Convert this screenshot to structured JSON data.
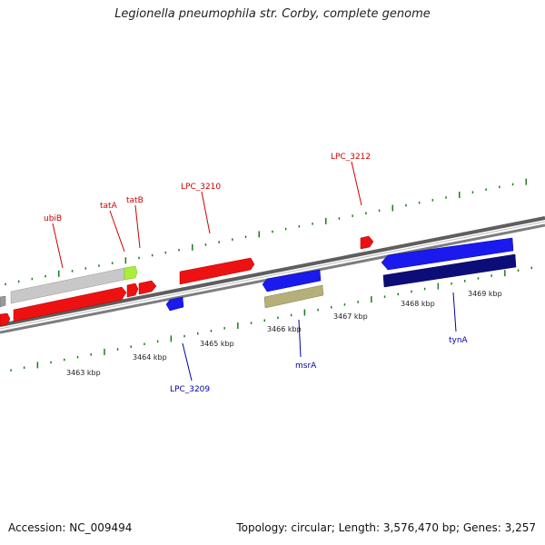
{
  "title": "Legionella pneumophila str. Corby, complete genome",
  "footer": {
    "accession": "Accession: NC_009494",
    "summary": "Topology: circular; Length: 3,576,470 bp; Genes: 3,257"
  },
  "colors": {
    "backbone": "#8c8c8c",
    "tick_green": "#1f7a1f",
    "forward_strand_gene": "#ee1111",
    "reverse_strand_gene": "#1a1aee",
    "label_forward": "#cc0000",
    "label_reverse": "#0000aa"
  },
  "scale_ticks": [
    {
      "label": "3463 kbp"
    },
    {
      "label": "3464 kbp"
    },
    {
      "label": "3465 kbp"
    },
    {
      "label": "3466 kbp"
    },
    {
      "label": "3467 kbp"
    },
    {
      "label": "3468 kbp"
    },
    {
      "label": "3469 kbp"
    }
  ],
  "top_labels": [
    {
      "name": "ubiB",
      "color": "#cc0000"
    },
    {
      "name": "tatA",
      "color": "#cc0000"
    },
    {
      "name": "tatB",
      "color": "#cc0000"
    },
    {
      "name": "LPC_3210",
      "color": "#cc0000"
    },
    {
      "name": "LPC_3212",
      "color": "#cc0000"
    }
  ],
  "bottom_labels": [
    {
      "name": "LPC_3209",
      "color": "#0000aa"
    },
    {
      "name": "msrA",
      "color": "#0000aa"
    },
    {
      "name": "tynA",
      "color": "#0000aa"
    }
  ],
  "features": [
    {
      "id": "outer-grey-left",
      "color": "#9a9a9a"
    },
    {
      "id": "ubiB-grey",
      "color": "#c8c8c8"
    },
    {
      "id": "tatA-green",
      "color": "#a7f03a"
    },
    {
      "id": "red-left-small",
      "color": "#ee1111"
    },
    {
      "id": "red-long-lower",
      "color": "#ee1111"
    },
    {
      "id": "tatB-red-small-1",
      "color": "#ee1111"
    },
    {
      "id": "tatB-red-small-2",
      "color": "#ee1111"
    },
    {
      "id": "LPC_3209-blue",
      "color": "#1a1aee"
    },
    {
      "id": "LPC_3210-red",
      "color": "#ee1111"
    },
    {
      "id": "msrA-blue",
      "color": "#1a1aee"
    },
    {
      "id": "msrA-olive",
      "color": "#b5b07a"
    },
    {
      "id": "LPC_3212-red",
      "color": "#ee1111"
    },
    {
      "id": "tynA-blue",
      "color": "#1a1aee"
    },
    {
      "id": "tynA-navy",
      "color": "#0d0d7a"
    }
  ]
}
